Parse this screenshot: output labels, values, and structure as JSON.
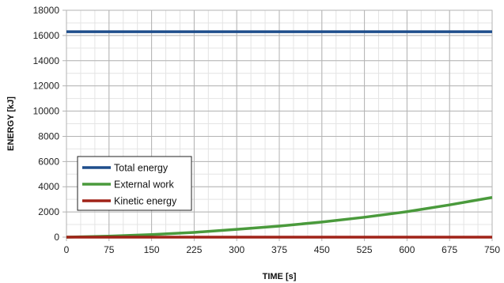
{
  "chart_data": {
    "type": "line",
    "xlabel": "TIME [s]",
    "ylabel": "ENERGY [kJ]",
    "xlim": [
      0,
      750
    ],
    "ylim": [
      0,
      18000
    ],
    "x_ticks": [
      0,
      75,
      150,
      225,
      300,
      375,
      450,
      525,
      600,
      675,
      750
    ],
    "y_ticks": [
      0,
      2000,
      4000,
      6000,
      8000,
      10000,
      12000,
      14000,
      16000,
      18000
    ],
    "x_minor_step": 25,
    "y_minor_step": 1000,
    "grid": true,
    "legend_position": "lower-left",
    "series": [
      {
        "name": "Total energy",
        "color": "#1f4e8c",
        "x": [
          0,
          75,
          150,
          225,
          300,
          375,
          450,
          525,
          600,
          675,
          750
        ],
        "y": [
          16300,
          16300,
          16300,
          16300,
          16300,
          16300,
          16300,
          16300,
          16300,
          16300,
          16300
        ]
      },
      {
        "name": "External work",
        "color": "#4a9a3c",
        "x": [
          0,
          75,
          150,
          225,
          300,
          375,
          450,
          525,
          600,
          675,
          750
        ],
        "y": [
          0,
          80,
          200,
          380,
          620,
          880,
          1200,
          1580,
          2020,
          2560,
          3150
        ]
      },
      {
        "name": "Kinetic energy",
        "color": "#a02318",
        "x": [
          0,
          75,
          150,
          225,
          300,
          375,
          450,
          525,
          600,
          675,
          750
        ],
        "y": [
          0,
          0,
          0,
          0,
          0,
          0,
          0,
          0,
          0,
          0,
          0
        ]
      }
    ]
  }
}
